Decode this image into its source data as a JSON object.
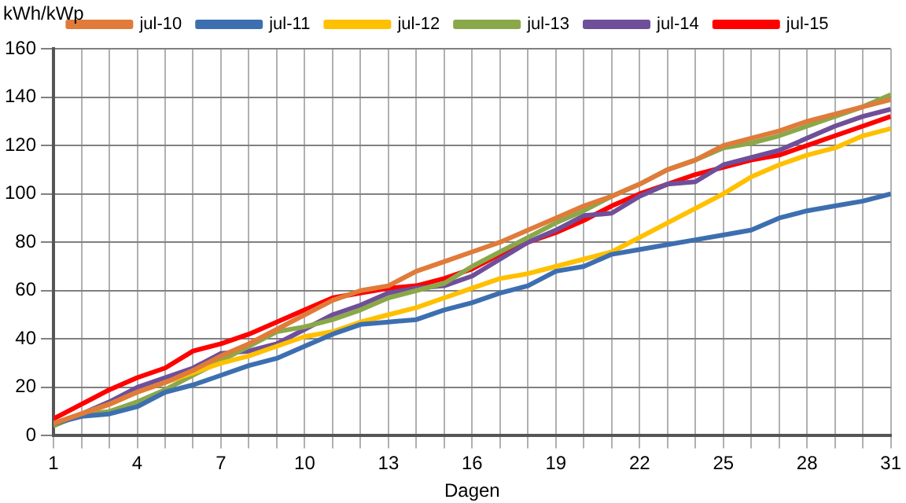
{
  "chart_data": {
    "type": "line",
    "xlabel": "Dagen",
    "ylabel": "kWh/kWp",
    "legend": "top",
    "grid": true,
    "marker": "none",
    "line_style": "solid",
    "x": [
      1,
      2,
      3,
      4,
      5,
      6,
      7,
      8,
      9,
      10,
      11,
      12,
      13,
      14,
      15,
      16,
      17,
      18,
      19,
      20,
      21,
      22,
      23,
      24,
      25,
      26,
      27,
      28,
      29,
      30,
      31
    ],
    "xlim": [
      1,
      31
    ],
    "xticks": [
      1,
      {
        "value": 2,
        "label": null
      },
      {
        "value": 3,
        "label": null
      },
      4,
      {
        "value": 5,
        "label": null
      },
      {
        "value": 6,
        "label": null
      },
      7,
      {
        "value": 8,
        "label": null
      },
      {
        "value": 9,
        "label": null
      },
      10,
      {
        "value": 11,
        "label": null
      },
      {
        "value": 12,
        "label": null
      },
      13,
      {
        "value": 14,
        "label": null
      },
      {
        "value": 15,
        "label": null
      },
      16,
      {
        "value": 17,
        "label": null
      },
      {
        "value": 18,
        "label": null
      },
      19,
      {
        "value": 20,
        "label": null
      },
      {
        "value": 21,
        "label": null
      },
      22,
      {
        "value": 23,
        "label": null
      },
      {
        "value": 24,
        "label": null
      },
      25,
      {
        "value": 26,
        "label": null
      },
      {
        "value": 27,
        "label": null
      },
      28,
      {
        "value": 29,
        "label": null
      },
      {
        "value": 30,
        "label": null
      },
      31
    ],
    "ylim": [
      0,
      160
    ],
    "yticks": [
      0,
      20,
      40,
      60,
      80,
      100,
      120,
      140,
      160
    ],
    "series": [
      {
        "name": "jul-10",
        "color": "#e07b39",
        "values": [
          5,
          9,
          13,
          18,
          22,
          27,
          33,
          38,
          44,
          50,
          56,
          60,
          62,
          68,
          72,
          76,
          80,
          85,
          90,
          95,
          99,
          104,
          110,
          114,
          120,
          123,
          126,
          130,
          133,
          136,
          139
        ]
      },
      {
        "name": "jul-11",
        "color": "#3d6fb0",
        "values": [
          5,
          8,
          9,
          12,
          18,
          21,
          25,
          29,
          32,
          37,
          42,
          46,
          47,
          48,
          52,
          55,
          59,
          62,
          68,
          70,
          75,
          77,
          79,
          81,
          83,
          85,
          90,
          93,
          95,
          97,
          100
        ]
      },
      {
        "name": "jul-12",
        "color": "#ffc000",
        "values": [
          5,
          9,
          13,
          18,
          22,
          26,
          30,
          33,
          37,
          41,
          43,
          47,
          50,
          53,
          57,
          61,
          65,
          67,
          70,
          73,
          76,
          82,
          88,
          94,
          100,
          107,
          112,
          116,
          119,
          124,
          127
        ]
      },
      {
        "name": "jul-13",
        "color": "#8aa84a",
        "values": [
          4,
          9,
          10,
          14,
          19,
          25,
          31,
          37,
          43,
          45,
          48,
          52,
          57,
          60,
          63,
          70,
          76,
          82,
          88,
          93,
          99,
          104,
          110,
          114,
          119,
          121,
          124,
          128,
          132,
          136,
          141
        ]
      },
      {
        "name": "jul-14",
        "color": "#6f4f9a",
        "values": [
          5,
          9,
          14,
          20,
          24,
          28,
          34,
          35,
          38,
          44,
          50,
          54,
          59,
          61,
          62,
          66,
          73,
          80,
          85,
          91,
          92,
          99,
          104,
          105,
          112,
          115,
          118,
          123,
          128,
          132,
          135
        ]
      },
      {
        "name": "jul-15",
        "color": "#ff0000",
        "values": [
          7,
          13,
          19,
          24,
          28,
          35,
          38,
          42,
          47,
          52,
          57,
          59,
          61,
          62,
          65,
          69,
          75,
          80,
          84,
          89,
          95,
          100,
          104,
          108,
          111,
          114,
          116,
          120,
          124,
          128,
          132
        ]
      }
    ]
  }
}
